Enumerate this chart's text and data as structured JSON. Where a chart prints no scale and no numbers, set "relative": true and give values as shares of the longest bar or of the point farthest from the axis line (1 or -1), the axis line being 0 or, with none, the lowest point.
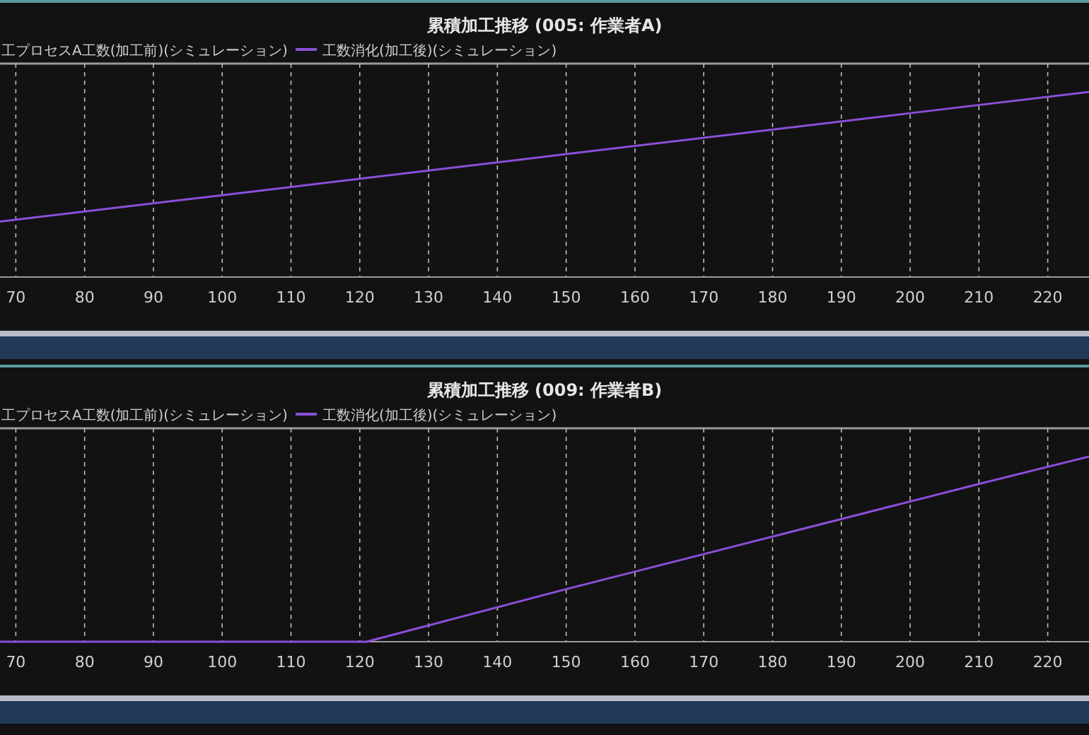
{
  "chart_data": [
    {
      "type": "line",
      "title": "累積加工推移 (005: 作業者A)",
      "relative": true,
      "xlim": [
        67.7,
        226
      ],
      "xticks": [
        70,
        80,
        90,
        100,
        110,
        120,
        130,
        140,
        150,
        160,
        170,
        180,
        190,
        200,
        210,
        220
      ],
      "grid": "x",
      "legend": "top",
      "annotations": [
        "工プロセスA工数(加工前)(シミュレーション)"
      ],
      "series": [
        {
          "name": "工数消化(加工後)(シミュレーション)",
          "color": "#8a4fd8",
          "x": [
            67.7,
            100,
            150,
            200,
            226
          ],
          "values": [
            0.3,
            0.442,
            0.664,
            0.885,
            1
          ]
        }
      ]
    },
    {
      "type": "line",
      "title": "累積加工推移 (009: 作業者B)",
      "relative": true,
      "xlim": [
        67.7,
        226
      ],
      "xticks": [
        70,
        80,
        90,
        100,
        110,
        120,
        130,
        140,
        150,
        160,
        170,
        180,
        190,
        200,
        210,
        220
      ],
      "grid": "x",
      "legend": "top",
      "annotations": [
        "工プロセスA工数(加工前)(シミュレーション)"
      ],
      "series": [
        {
          "name": "工数消化(加工後)(シミュレーション)",
          "color": "#8a4fd8",
          "x": [
            67.7,
            121,
            150,
            180,
            210,
            226
          ],
          "values": [
            0,
            0,
            0.284,
            0.568,
            0.852,
            1
          ]
        }
      ]
    }
  ]
}
